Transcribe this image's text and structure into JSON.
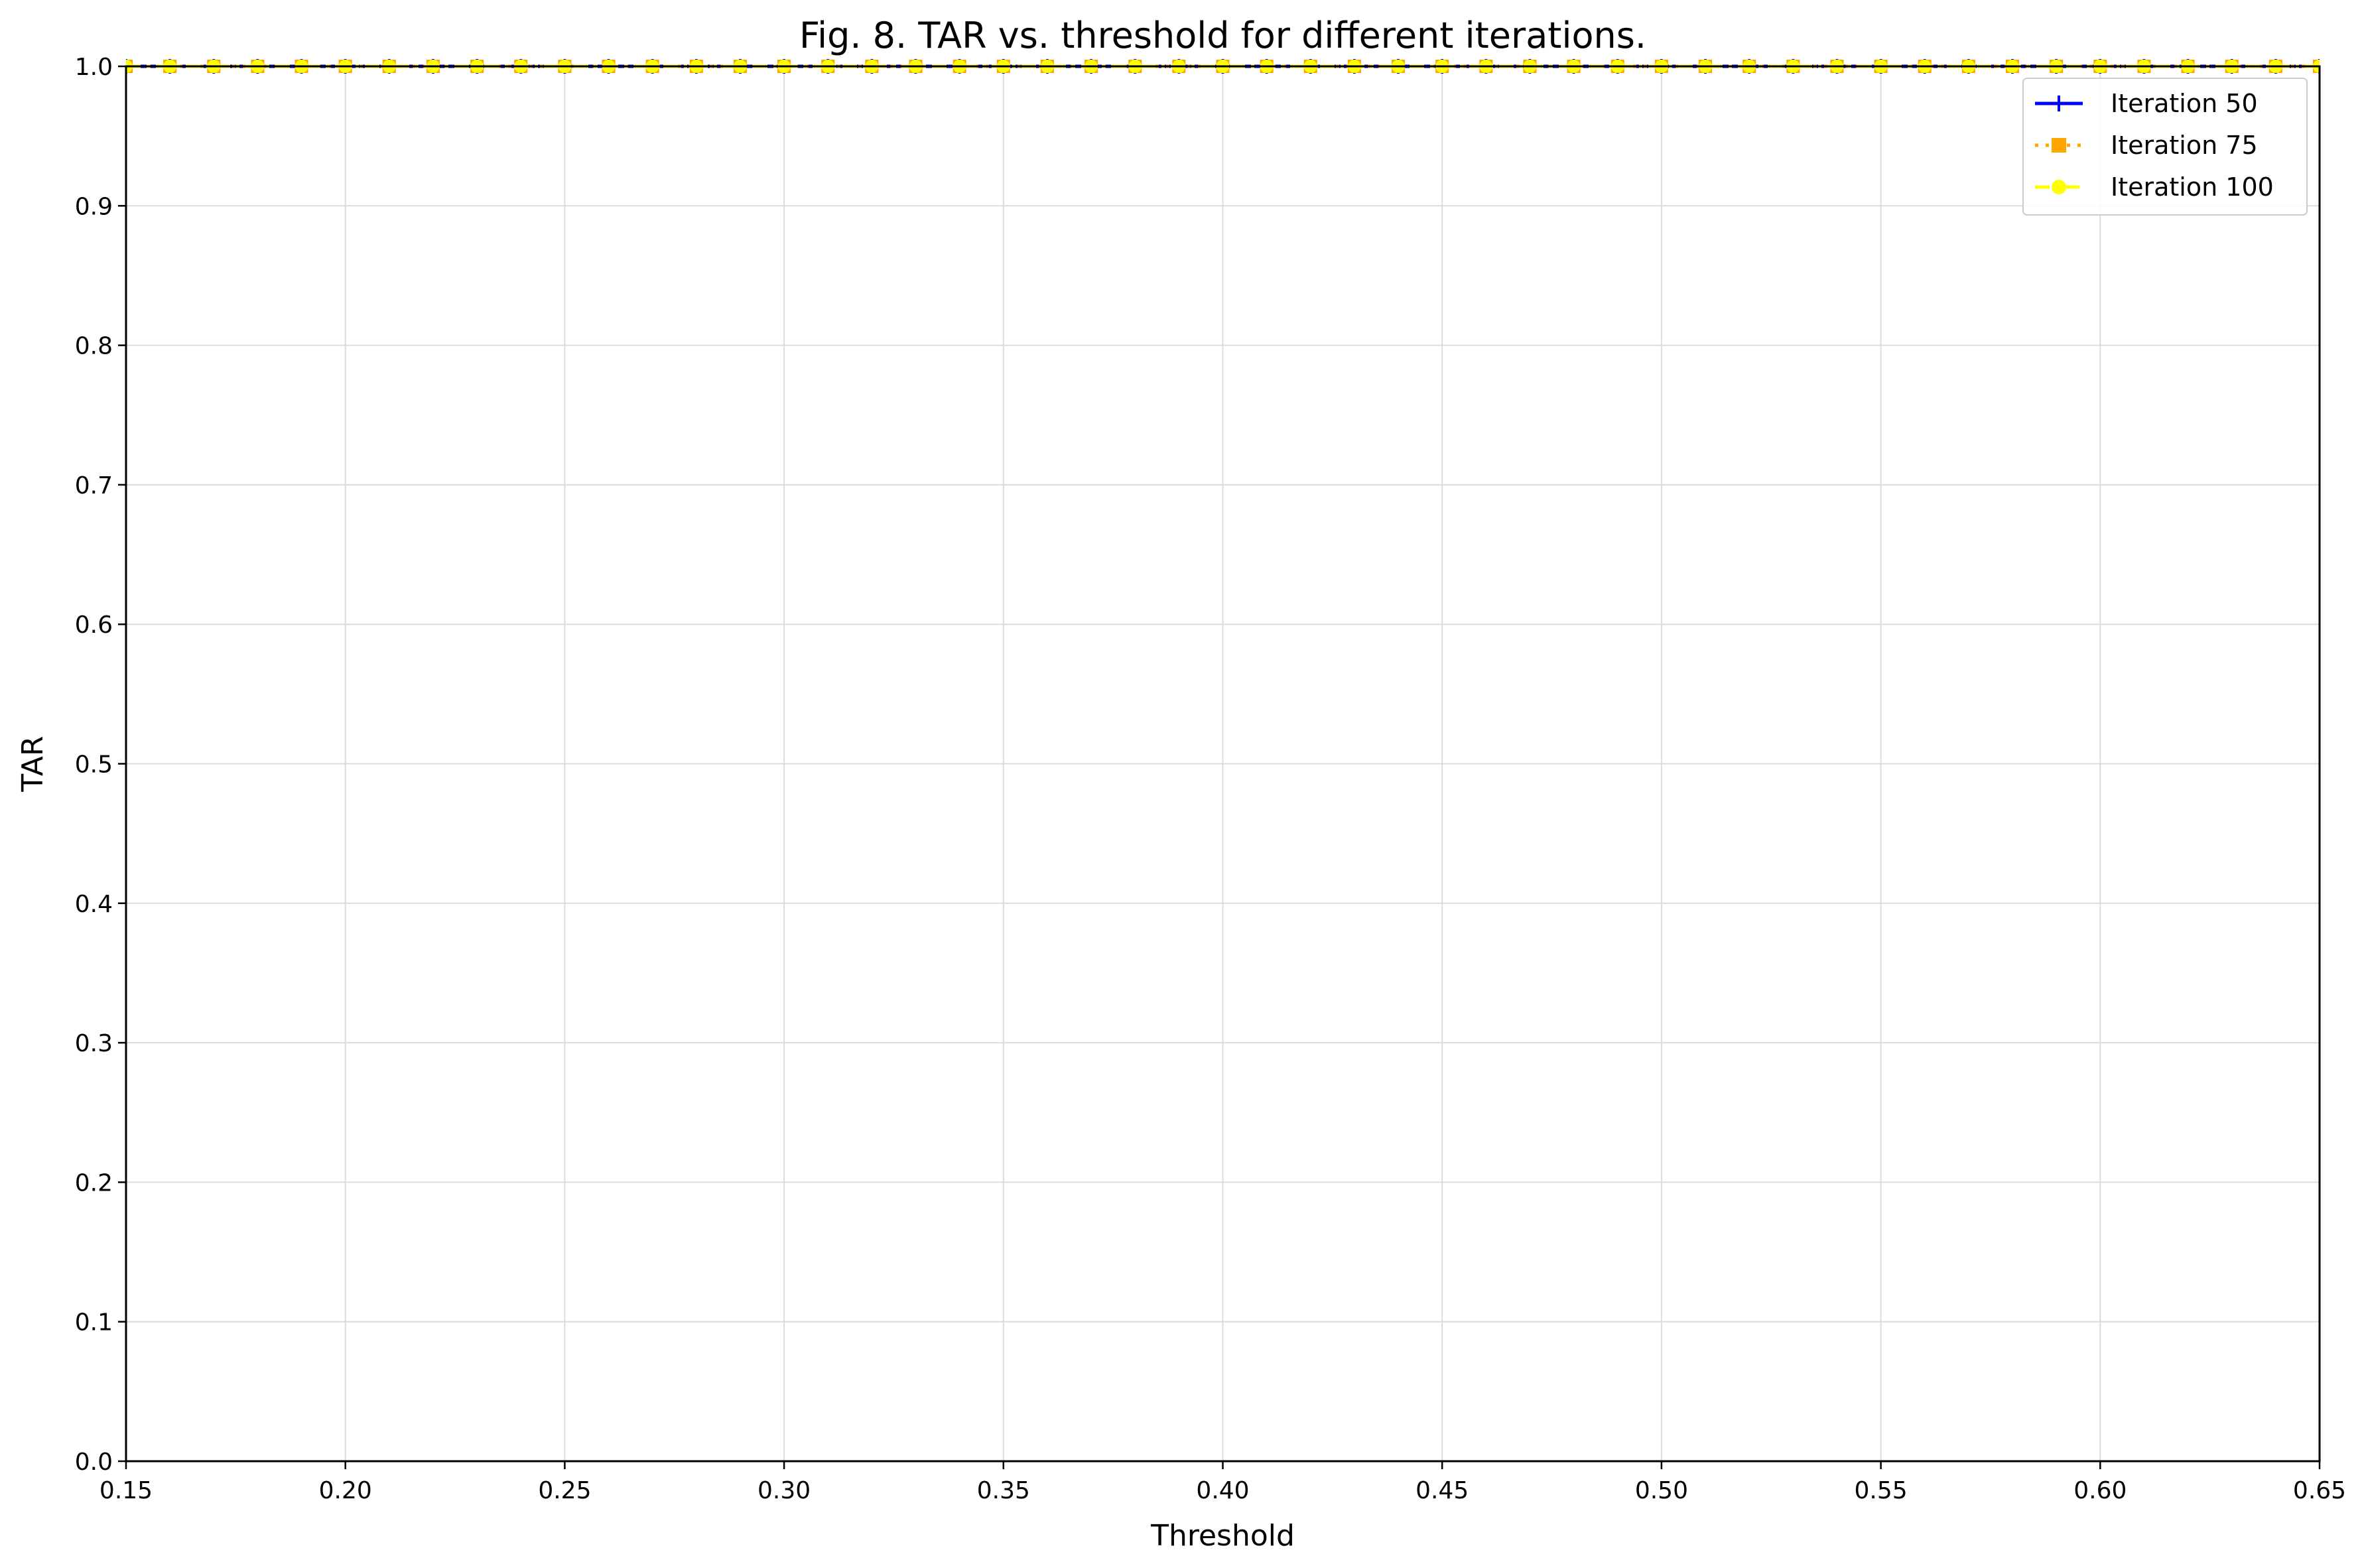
{
  "chart_data": {
    "type": "line",
    "title": "Fig. 8. TAR vs. threshold for different iterations.",
    "xlabel": "Threshold",
    "ylabel": "TAR",
    "xlim": [
      0.15,
      0.65
    ],
    "ylim": [
      0.0,
      1.0
    ],
    "xticks": [
      "0.15",
      "0.20",
      "0.25",
      "0.30",
      "0.35",
      "0.40",
      "0.45",
      "0.50",
      "0.55",
      "0.60",
      "0.65"
    ],
    "yticks": [
      "0.0",
      "0.1",
      "0.2",
      "0.3",
      "0.4",
      "0.5",
      "0.6",
      "0.7",
      "0.8",
      "0.9",
      "1.0"
    ],
    "grid": true,
    "legend_position": "top-right",
    "x": [
      0.15,
      0.16,
      0.17,
      0.18,
      0.19,
      0.2,
      0.21,
      0.22,
      0.23,
      0.24,
      0.25,
      0.26,
      0.27,
      0.28,
      0.29,
      0.3,
      0.31,
      0.32,
      0.33,
      0.34,
      0.35,
      0.36,
      0.37,
      0.38,
      0.39,
      0.4,
      0.41,
      0.42,
      0.43,
      0.44,
      0.45,
      0.46,
      0.47,
      0.48,
      0.49,
      0.5,
      0.51,
      0.52,
      0.53,
      0.54,
      0.55,
      0.56,
      0.57,
      0.58,
      0.59,
      0.6,
      0.61,
      0.62,
      0.63,
      0.64,
      0.65
    ],
    "series": [
      {
        "name": "Iteration 50",
        "color": "#0000ff",
        "linestyle": "solid",
        "marker": "plus",
        "values": [
          1.0,
          1.0,
          1.0,
          1.0,
          1.0,
          1.0,
          1.0,
          1.0,
          1.0,
          1.0,
          1.0,
          1.0,
          1.0,
          1.0,
          1.0,
          1.0,
          1.0,
          1.0,
          1.0,
          1.0,
          1.0,
          1.0,
          1.0,
          1.0,
          1.0,
          1.0,
          1.0,
          1.0,
          1.0,
          1.0,
          1.0,
          1.0,
          1.0,
          1.0,
          1.0,
          1.0,
          1.0,
          1.0,
          1.0,
          1.0,
          1.0,
          1.0,
          1.0,
          1.0,
          1.0,
          1.0,
          1.0,
          1.0,
          1.0,
          1.0,
          1.0
        ]
      },
      {
        "name": "Iteration 75",
        "color": "#ffa500",
        "linestyle": "dotted",
        "marker": "square",
        "values": [
          1.0,
          1.0,
          1.0,
          1.0,
          1.0,
          1.0,
          1.0,
          1.0,
          1.0,
          1.0,
          1.0,
          1.0,
          1.0,
          1.0,
          1.0,
          1.0,
          1.0,
          1.0,
          1.0,
          1.0,
          1.0,
          1.0,
          1.0,
          1.0,
          1.0,
          1.0,
          1.0,
          1.0,
          1.0,
          1.0,
          1.0,
          1.0,
          1.0,
          1.0,
          1.0,
          1.0,
          1.0,
          1.0,
          1.0,
          1.0,
          1.0,
          1.0,
          1.0,
          1.0,
          1.0,
          1.0,
          1.0,
          1.0,
          1.0,
          1.0,
          1.0
        ]
      },
      {
        "name": "Iteration 100",
        "color": "#ffff00",
        "linestyle": "dashdot",
        "marker": "circle",
        "values": [
          1.0,
          1.0,
          1.0,
          1.0,
          1.0,
          1.0,
          1.0,
          1.0,
          1.0,
          1.0,
          1.0,
          1.0,
          1.0,
          1.0,
          1.0,
          1.0,
          1.0,
          1.0,
          1.0,
          1.0,
          1.0,
          1.0,
          1.0,
          1.0,
          1.0,
          1.0,
          1.0,
          1.0,
          1.0,
          1.0,
          1.0,
          1.0,
          1.0,
          1.0,
          1.0,
          1.0,
          1.0,
          1.0,
          1.0,
          1.0,
          1.0,
          1.0,
          1.0,
          1.0,
          1.0,
          1.0,
          1.0,
          1.0,
          1.0,
          1.0,
          1.0
        ]
      }
    ]
  }
}
